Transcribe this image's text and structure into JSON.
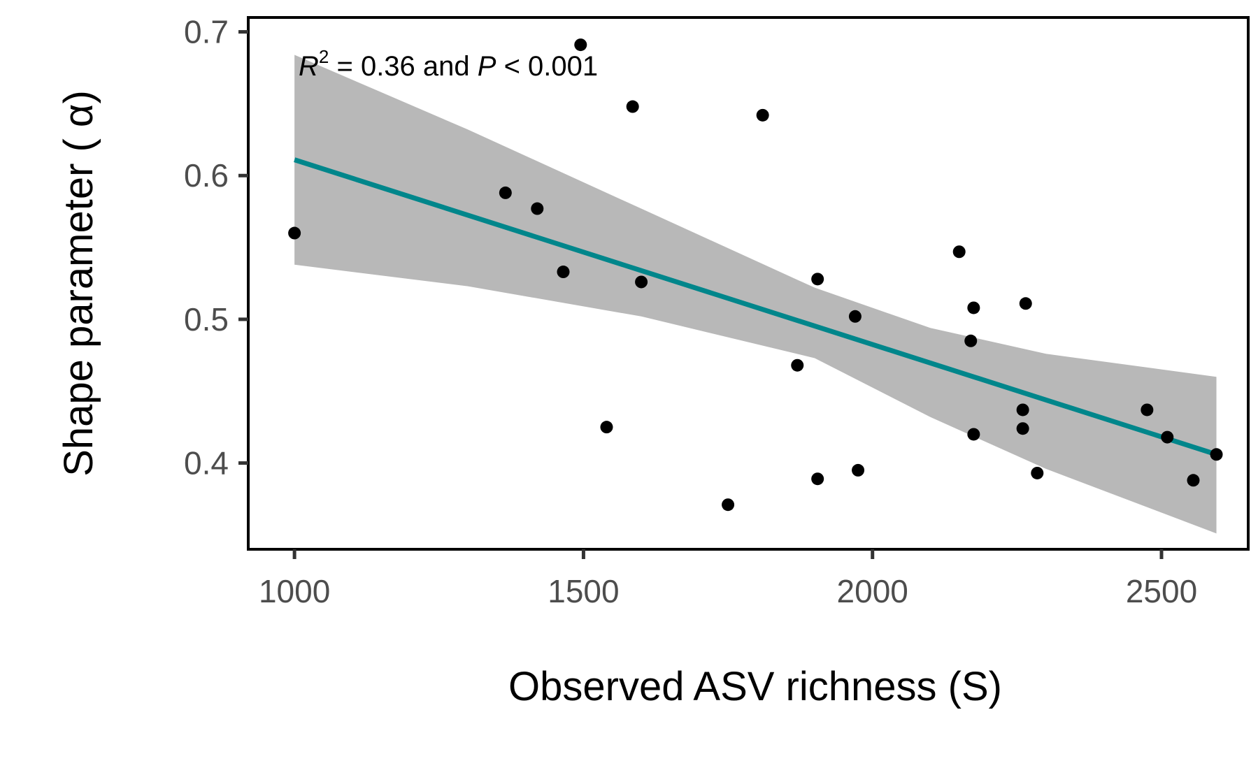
{
  "chart_data": {
    "type": "scatter",
    "title": "",
    "xlabel": "Observed ASV richness (S)",
    "ylabel": "Shape parameter ( α)",
    "xlim": [
      920,
      2650
    ],
    "ylim": [
      0.34,
      0.71
    ],
    "x_ticks": [
      1000,
      1500,
      2000,
      2500
    ],
    "x_tick_labels": [
      "1000",
      "1500",
      "2000",
      "2500"
    ],
    "y_ticks": [
      0.4,
      0.5,
      0.6,
      0.7
    ],
    "y_tick_labels": [
      "0.4",
      "0.5",
      "0.6",
      "0.7"
    ],
    "grid": false,
    "legend": "none",
    "annotation": {
      "r_symbol": "R",
      "r_exponent": "2",
      "middle": " = 0.36 and ",
      "p_symbol": "P",
      "tail": " < 0.001"
    },
    "points": [
      {
        "x": 1000,
        "y": 0.56
      },
      {
        "x": 1365,
        "y": 0.588
      },
      {
        "x": 1420,
        "y": 0.577
      },
      {
        "x": 1465,
        "y": 0.533
      },
      {
        "x": 1495,
        "y": 0.691
      },
      {
        "x": 1540,
        "y": 0.425
      },
      {
        "x": 1585,
        "y": 0.648
      },
      {
        "x": 1600,
        "y": 0.526
      },
      {
        "x": 1750,
        "y": 0.371
      },
      {
        "x": 1810,
        "y": 0.642
      },
      {
        "x": 1870,
        "y": 0.468
      },
      {
        "x": 1905,
        "y": 0.528
      },
      {
        "x": 1905,
        "y": 0.389
      },
      {
        "x": 1970,
        "y": 0.502
      },
      {
        "x": 1975,
        "y": 0.395
      },
      {
        "x": 2150,
        "y": 0.547
      },
      {
        "x": 2170,
        "y": 0.485
      },
      {
        "x": 2175,
        "y": 0.508
      },
      {
        "x": 2175,
        "y": 0.42
      },
      {
        "x": 2260,
        "y": 0.437
      },
      {
        "x": 2260,
        "y": 0.424
      },
      {
        "x": 2265,
        "y": 0.511
      },
      {
        "x": 2285,
        "y": 0.393
      },
      {
        "x": 2475,
        "y": 0.437
      },
      {
        "x": 2510,
        "y": 0.418
      },
      {
        "x": 2555,
        "y": 0.388
      },
      {
        "x": 2595,
        "y": 0.406
      }
    ],
    "fit_line": {
      "x": [
        1000,
        2595
      ],
      "y": [
        0.611,
        0.406
      ],
      "color": "#00868b"
    },
    "confidence_band": {
      "x": [
        1000,
        1300,
        1600,
        1900,
        2100,
        2300,
        2595
      ],
      "upper": [
        0.684,
        0.632,
        0.577,
        0.522,
        0.494,
        0.476,
        0.46
      ],
      "lower": [
        0.538,
        0.523,
        0.502,
        0.473,
        0.432,
        0.396,
        0.351
      ],
      "color": "#b8b8b8"
    },
    "point_color": "#000000"
  }
}
